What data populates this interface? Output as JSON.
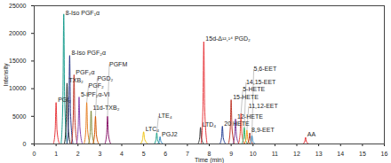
{
  "chart_data": {
    "type": "line",
    "x_label": "Time (min)",
    "y_label": "Intensity",
    "xlim": [
      0,
      16
    ],
    "xticks": [
      0,
      1,
      2,
      3,
      4,
      5,
      6,
      7,
      8,
      9,
      10,
      11,
      12,
      13,
      14,
      15,
      16
    ],
    "ylim": [
      0,
      25000
    ],
    "yticks": [
      0,
      5000,
      10000,
      15000,
      20000,
      25000
    ],
    "grid": false,
    "series": [
      {
        "name": "PGI₂",
        "color": "#e8383d",
        "x": [
          0.88,
          0.96,
          1.0,
          1.04,
          1.15
        ],
        "values": [
          0,
          2600,
          7500,
          2600,
          0
        ]
      },
      {
        "name": "8-Iso PGF₁α",
        "color": "#1a9e8f",
        "x": [
          1.23,
          1.31,
          1.35,
          1.39,
          1.5
        ],
        "values": [
          0,
          8200,
          23500,
          8200,
          0
        ]
      },
      {
        "name": "TXB₂",
        "color": "#222222",
        "x": [
          1.38,
          1.46,
          1.5,
          1.54,
          1.65
        ],
        "values": [
          0,
          3800,
          11000,
          3800,
          0
        ]
      },
      {
        "name": "8-Iso PGF₂α",
        "color": "#2b3a8c",
        "x": [
          1.5,
          1.58,
          1.62,
          1.66,
          1.77
        ],
        "values": [
          0,
          5600,
          16000,
          5600,
          0
        ]
      },
      {
        "name": "PGF₂α",
        "color": "#c0392b",
        "x": [
          1.7,
          1.78,
          1.82,
          1.86,
          1.97
        ],
        "values": [
          0,
          4400,
          12500,
          4400,
          0
        ]
      },
      {
        "name": "5-iPF₂α-VI",
        "color": "#8e44ad",
        "x": [
          1.93,
          2.01,
          2.05,
          2.09,
          2.2
        ],
        "values": [
          0,
          3000,
          8500,
          3000,
          0
        ]
      },
      {
        "name": "PGF₂",
        "color": "#e67e22",
        "x": [
          2.28,
          2.36,
          2.4,
          2.44,
          2.55
        ],
        "values": [
          0,
          2600,
          7500,
          2600,
          0
        ]
      },
      {
        "name": "11d-TXB₂",
        "color": "#7f8c3a",
        "x": [
          2.48,
          2.56,
          2.6,
          2.64,
          2.75
        ],
        "values": [
          0,
          2100,
          6000,
          2100,
          0
        ]
      },
      {
        "name": "PGD₂",
        "color": "#d35400",
        "x": [
          2.68,
          2.76,
          2.8,
          2.84,
          2.95
        ],
        "values": [
          0,
          1750,
          5000,
          1750,
          0
        ]
      },
      {
        "name": "PGFM",
        "color": "#8b1a6b",
        "x": [
          3.23,
          3.31,
          3.35,
          3.39,
          3.5
        ],
        "values": [
          0,
          1750,
          5000,
          1750,
          0
        ]
      },
      {
        "name": "LTC₄",
        "color": "#f1c40f",
        "x": [
          4.85,
          4.95,
          5.0,
          5.05,
          5.2
        ],
        "values": [
          0,
          800,
          2200,
          800,
          0
        ]
      },
      {
        "name": "LTE₄",
        "color": "#16a085",
        "x": [
          5.48,
          5.56,
          5.6,
          5.64,
          5.75
        ],
        "values": [
          0,
          700,
          2000,
          700,
          0
        ]
      },
      {
        "name": "PGJ2",
        "color": "#2e86c1",
        "x": [
          5.63,
          5.71,
          5.75,
          5.79,
          5.9
        ],
        "values": [
          0,
          450,
          1300,
          450,
          0
        ]
      },
      {
        "name": "LTD₄",
        "color": "#333333",
        "x": [
          7.48,
          7.56,
          7.6,
          7.64,
          7.75
        ],
        "values": [
          0,
          1050,
          3000,
          1050,
          0
        ]
      },
      {
        "name": "15d-Δ¹²,¹⁴ PGD₂",
        "color": "#e8383d",
        "x": [
          7.63,
          7.71,
          7.75,
          7.79,
          7.9
        ],
        "values": [
          0,
          6500,
          18500,
          6500,
          0
        ]
      },
      {
        "name": "20 HETE",
        "color": "#1f3a93",
        "x": [
          8.48,
          8.56,
          8.6,
          8.64,
          8.75
        ],
        "values": [
          0,
          1100,
          3200,
          1100,
          0
        ]
      },
      {
        "name": "15-HETE",
        "color": "#c0392b",
        "x": [
          8.88,
          8.96,
          9.0,
          9.04,
          9.15
        ],
        "values": [
          0,
          2800,
          8000,
          2800,
          0
        ]
      },
      {
        "name": "12-HETE",
        "color": "#7d3c98",
        "x": [
          9.08,
          9.16,
          9.2,
          9.24,
          9.35
        ],
        "values": [
          0,
          1600,
          4500,
          1600,
          0
        ]
      },
      {
        "name": "5-HETE",
        "color": "#e74c3c",
        "x": [
          9.33,
          9.41,
          9.45,
          9.49,
          9.6
        ],
        "values": [
          0,
          1900,
          5500,
          1900,
          0
        ]
      },
      {
        "name": "14,15-EET",
        "color": "#27ae60",
        "x": [
          9.48,
          9.56,
          9.6,
          9.64,
          9.75
        ],
        "values": [
          0,
          1050,
          3000,
          1050,
          0
        ]
      },
      {
        "name": "11,12-EET",
        "color": "#f39c12",
        "x": [
          9.6,
          9.68,
          9.72,
          9.76,
          9.87
        ],
        "values": [
          0,
          900,
          2500,
          900,
          0
        ]
      },
      {
        "name": "8,9-EET",
        "color": "#a93226",
        "x": [
          9.73,
          9.81,
          9.85,
          9.89,
          10.0
        ],
        "values": [
          0,
          700,
          2000,
          700,
          0
        ]
      },
      {
        "name": "5,6-EET",
        "color": "#2980b9",
        "x": [
          9.83,
          9.91,
          9.95,
          9.99,
          10.1
        ],
        "values": [
          0,
          500,
          1500,
          500,
          0
        ]
      },
      {
        "name": "AA",
        "color": "#e8383d",
        "x": [
          12.28,
          12.36,
          12.4,
          12.44,
          12.55
        ],
        "values": [
          0,
          400,
          1200,
          400,
          0
        ]
      }
    ]
  }
}
